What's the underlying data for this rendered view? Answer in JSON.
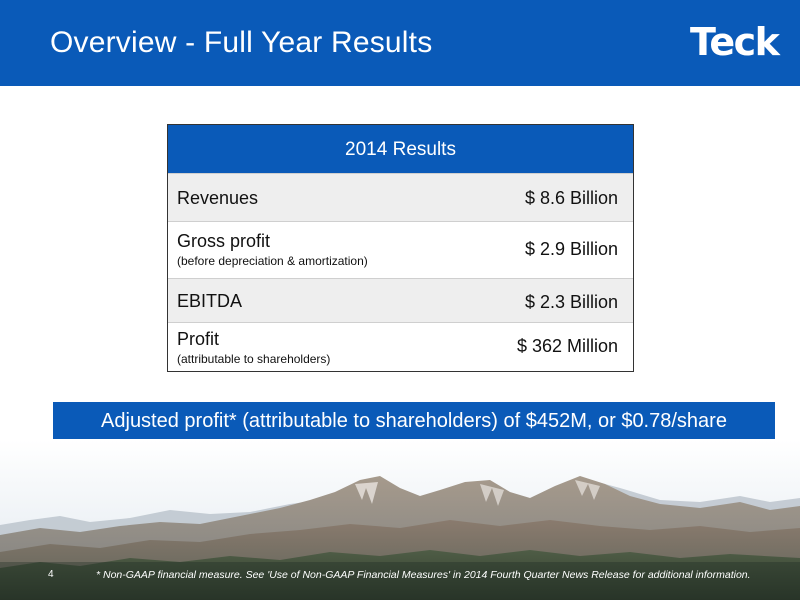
{
  "header": {
    "title": "Overview - Full Year Results",
    "logo_text": "Teck"
  },
  "results_table": {
    "heading": "2014 Results",
    "rows": [
      {
        "label": "Revenues",
        "sublabel": "",
        "value": "$ 8.6 Billion"
      },
      {
        "label": "Gross profit",
        "sublabel": "(before depreciation & amortization)",
        "value": "$ 2.9 Billion"
      },
      {
        "label": "EBITDA",
        "sublabel": "",
        "value": "$ 2.3 Billion"
      },
      {
        "label": "Profit",
        "sublabel": "(attributable to shareholders)",
        "value": "$ 362 Million"
      }
    ]
  },
  "highlight": "Adjusted profit* (attributable to shareholders) of $452M, or $0.78/share",
  "footer": {
    "page_number": "4",
    "footnote": "* Non-GAAP financial measure. See 'Use of Non-GAAP Financial Measures' in 2014 Fourth Quarter News Release for additional information."
  },
  "colors": {
    "brand_blue": "#0a5ab8",
    "shaded_row": "#eeeeee",
    "text": "#111111"
  },
  "icons": {
    "logo": "teck-logo",
    "background": "mountain-landscape-image"
  }
}
